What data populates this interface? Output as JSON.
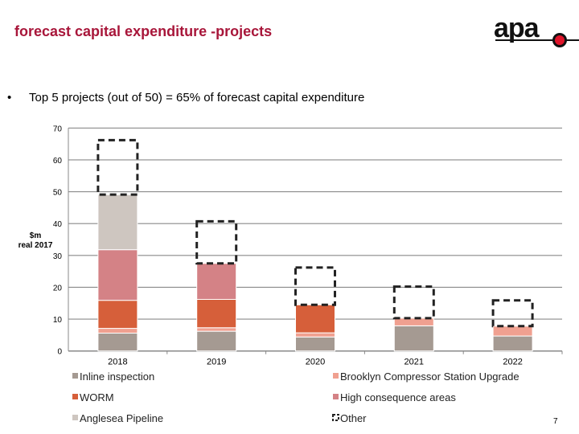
{
  "title": "forecast capital expenditure -projects",
  "bullet": "Top 5 projects (out of 50) = 65% of forecast capital expenditure",
  "logo_text": "apa",
  "page_number": "7",
  "chart_data": {
    "type": "bar",
    "stacked": true,
    "title": "",
    "xlabel": "",
    "ylabel_line1": "$m",
    "ylabel_line2": "real 2017",
    "ylim": [
      0,
      70
    ],
    "yticks": [
      "0",
      "10",
      "20",
      "30",
      "40",
      "50",
      "60",
      "70"
    ],
    "grid": true,
    "legend_position": "bottom",
    "categories": [
      "2018",
      "2019",
      "2020",
      "2021",
      "2022"
    ],
    "series": [
      {
        "name": "Inline inspection",
        "color": "#a59a92",
        "values": [
          5.6,
          6.2,
          4.4,
          7.9,
          4.7
        ]
      },
      {
        "name": "Brooklyn Compressor Station Upgrade",
        "color": "#f0a090",
        "values": [
          1.5,
          1.1,
          1.3,
          2.4,
          3.1
        ]
      },
      {
        "name": "WORM",
        "color": "#d65f3a",
        "values": [
          8.8,
          8.9,
          8.8,
          0,
          0
        ]
      },
      {
        "name": "High consequence areas",
        "color": "#d48286",
        "values": [
          15.9,
          11.3,
          0,
          0,
          0
        ]
      },
      {
        "name": "Anglesea Pipeline",
        "color": "#cec6c0",
        "values": [
          17.3,
          0,
          0,
          0,
          0
        ]
      },
      {
        "name": "Other",
        "color": "#222222",
        "style": "dashed-outline",
        "values": [
          17.1,
          13.2,
          11.7,
          9.9,
          8.1
        ]
      }
    ]
  }
}
